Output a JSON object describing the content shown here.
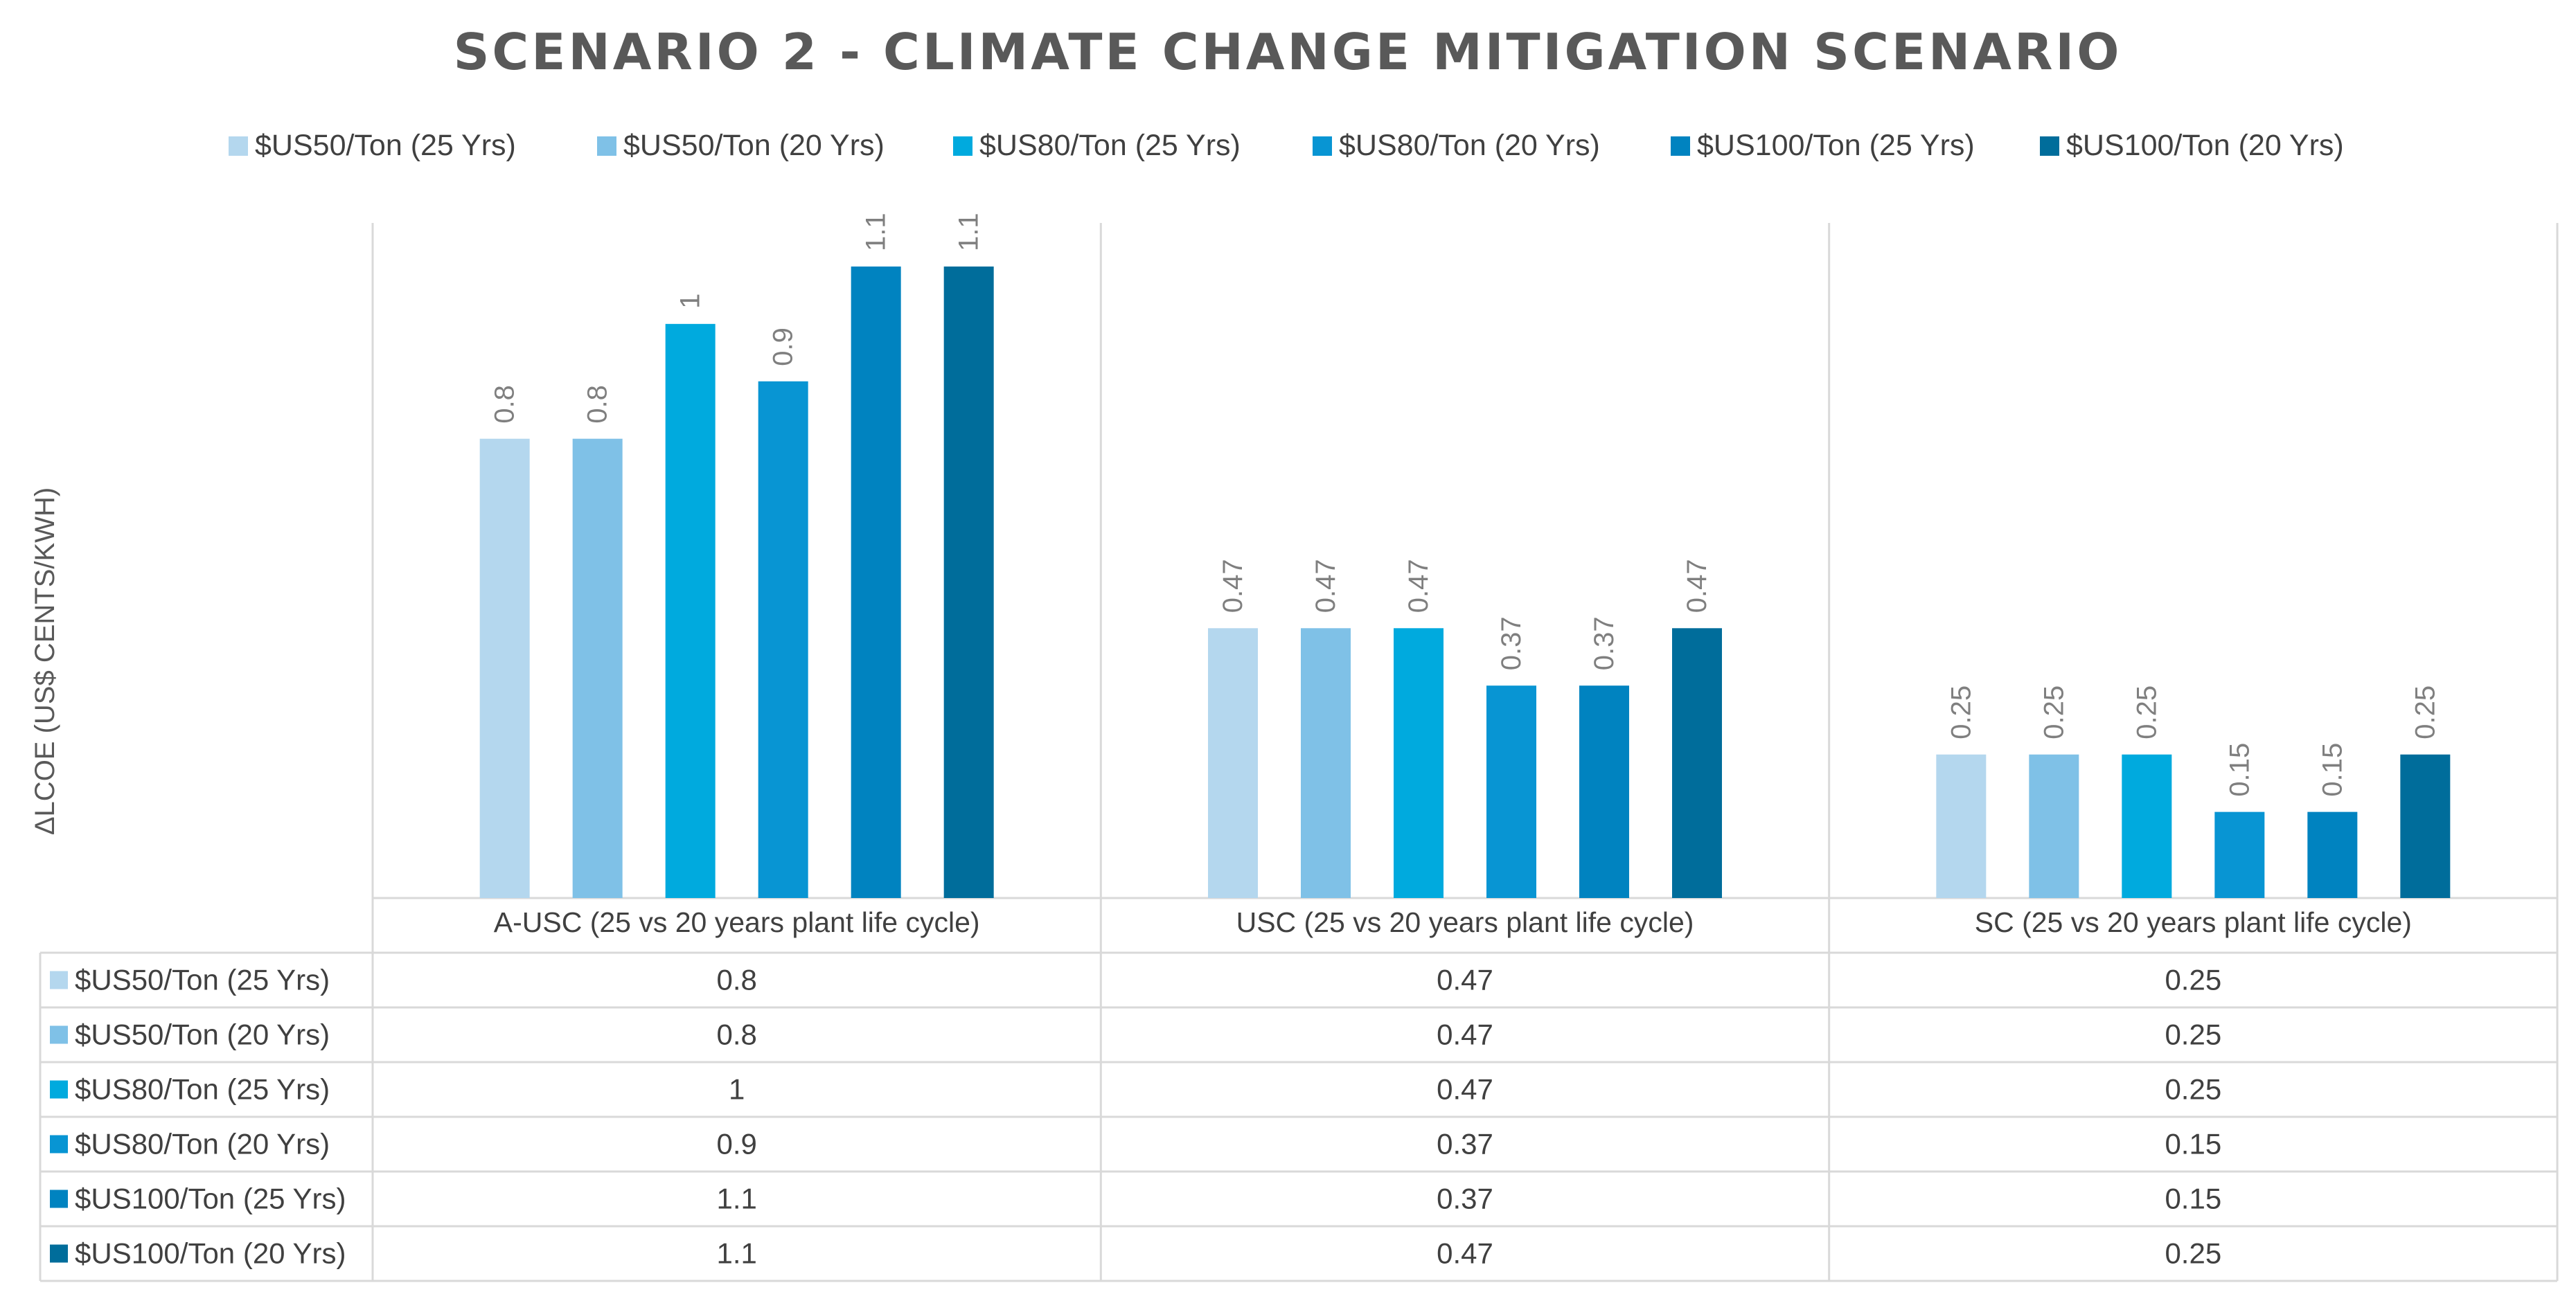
{
  "chart_data": {
    "type": "bar",
    "title": "SCENARIO 2 - CLIMATE CHANGE MITIGATION SCENARIO",
    "ylabel": "ΔLCOE (US$ CENTS/KWH)",
    "xlabel": "",
    "ylim": [
      0,
      1.2
    ],
    "grid": false,
    "legend_position": "top",
    "categories": [
      "A-USC (25 vs 20 years plant life cycle)",
      "USC (25 vs 20 years plant life cycle)",
      "SC (25 vs 20 years plant life cycle)"
    ],
    "series": [
      {
        "name": "$US50/Ton (25 Yrs)",
        "color": "#b4d7ee",
        "values": [
          0.8,
          0.47,
          0.25
        ],
        "labels": [
          "0.8",
          "0.47",
          "0.25"
        ]
      },
      {
        "name": "$US50/Ton (20 Yrs)",
        "color": "#7fc1e7",
        "values": [
          0.8,
          0.47,
          0.25
        ],
        "labels": [
          "0.8",
          "0.47",
          "0.25"
        ]
      },
      {
        "name": "$US80/Ton (25 Yrs)",
        "color": "#00aade",
        "values": [
          1,
          0.47,
          0.25
        ],
        "labels": [
          "1",
          "0.47",
          "0.25"
        ]
      },
      {
        "name": "$US80/Ton (20 Yrs)",
        "color": "#0895d3",
        "values": [
          0.9,
          0.37,
          0.15
        ],
        "labels": [
          "0.9",
          "0.37",
          "0.15"
        ]
      },
      {
        "name": "$US100/Ton (25 Yrs)",
        "color": "#0083c0",
        "values": [
          1.1,
          0.37,
          0.15
        ],
        "labels": [
          "1.1",
          "0.37",
          "0.15"
        ]
      },
      {
        "name": "$US100/Ton (20 Yrs)",
        "color": "#006d9b",
        "values": [
          1.1,
          0.47,
          0.25
        ],
        "labels": [
          "1.1",
          "0.47",
          "0.25"
        ]
      }
    ]
  }
}
